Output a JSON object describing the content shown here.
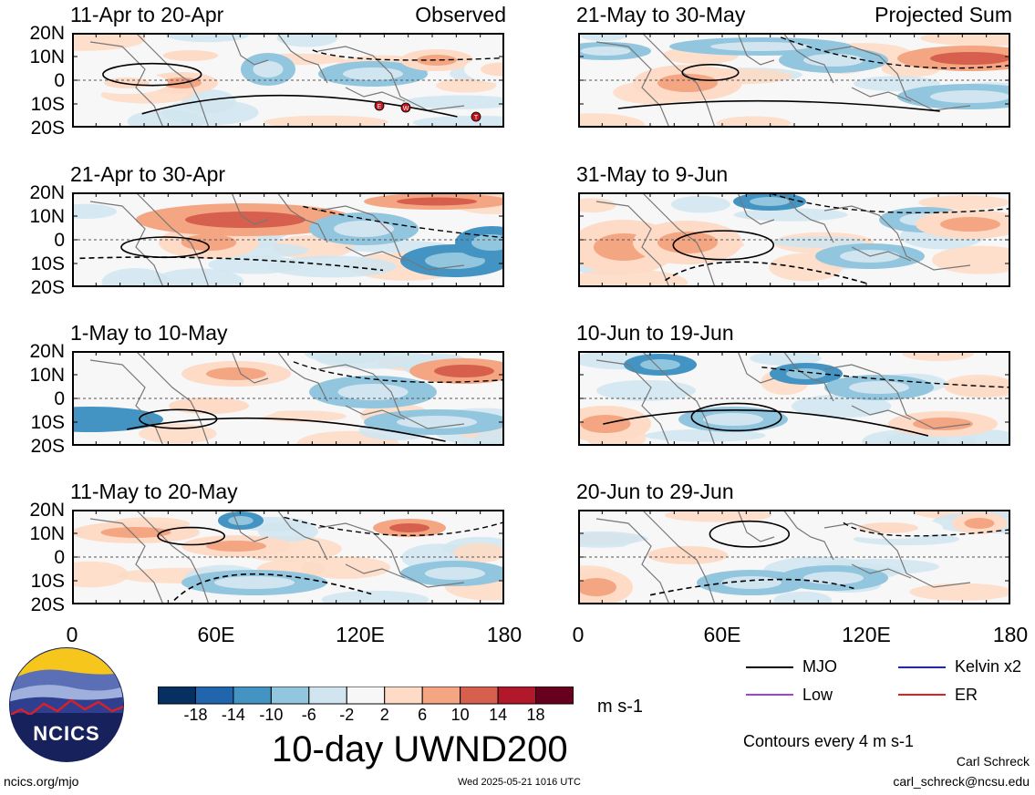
{
  "left_column_label": "Observed",
  "right_column_label": "Projected Sum",
  "y_tick_labels": [
    "20N",
    "10N",
    "0",
    "10S",
    "20S"
  ],
  "x_tick_labels": [
    "0",
    "60E",
    "120E",
    "180"
  ],
  "panels": [
    {
      "title": "11-Apr to 20-Apr",
      "column": "left",
      "row": 0
    },
    {
      "title": "21-Apr to 30-Apr",
      "column": "left",
      "row": 1
    },
    {
      "title": "1-May to 10-May",
      "column": "left",
      "row": 2
    },
    {
      "title": "11-May to 20-May",
      "column": "left",
      "row": 3
    },
    {
      "title": "21-May to 30-May",
      "column": "right",
      "row": 0
    },
    {
      "title": "31-May to 9-Jun",
      "column": "right",
      "row": 1
    },
    {
      "title": "10-Jun to 19-Jun",
      "column": "right",
      "row": 2
    },
    {
      "title": "20-Jun to 29-Jun",
      "column": "right",
      "row": 3
    }
  ],
  "storm_markers": [
    "E",
    "W",
    "T"
  ],
  "colorbar": {
    "tick_labels": [
      "-18",
      "-14",
      "-10",
      "-6",
      "-2",
      "2",
      "6",
      "10",
      "14",
      "18"
    ],
    "colors": [
      "#053061",
      "#2166ac",
      "#4393c3",
      "#92c5de",
      "#d1e5f0",
      "#f7f7f7",
      "#fddbc7",
      "#f4a582",
      "#d6604d",
      "#b2182b",
      "#67001f"
    ],
    "units": "m s-1"
  },
  "main_title": "10-day UWND200",
  "legend": [
    {
      "label": "MJO",
      "color": "#000000"
    },
    {
      "label": "Kelvin x2",
      "color": "#1f1fe0"
    },
    {
      "label": "Low",
      "color": "#a040e0"
    },
    {
      "label": "ER",
      "color": "#e01f1f"
    }
  ],
  "contour_note": "Contours every 4 m s-1",
  "author": "Carl Schreck",
  "email": "carl_schreck@ncsu.edu",
  "logo_text": "NCICS",
  "url": "ncics.org/mjo",
  "timestamp": "Wed 2025-05-21 1016 UTC",
  "chart_data": {
    "type": "heatmap",
    "variable": "10-day UWND200",
    "units": "m s-1",
    "x_range": [
      "0",
      "180"
    ],
    "y_range": [
      "20S",
      "20N"
    ],
    "contour_interval_text": "Contours every 4 m s-1"
  }
}
